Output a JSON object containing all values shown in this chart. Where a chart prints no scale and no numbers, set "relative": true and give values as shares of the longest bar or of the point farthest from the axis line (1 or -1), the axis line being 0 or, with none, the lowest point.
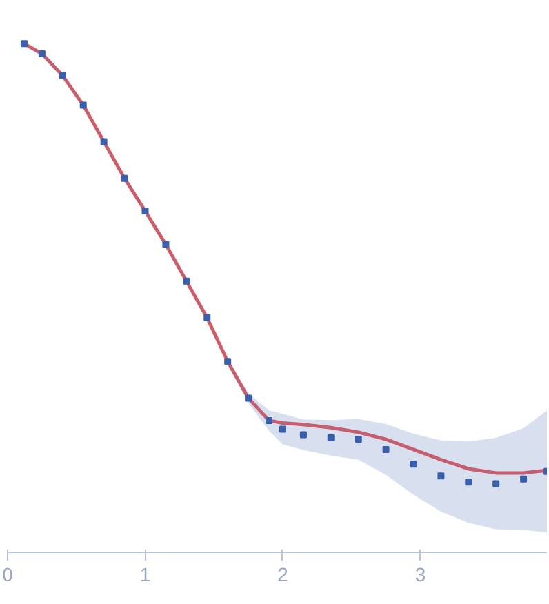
{
  "chart_data": {
    "type": "scatter",
    "relative": true,
    "x": [
      0.12,
      0.25,
      0.4,
      0.55,
      0.7,
      0.85,
      1.0,
      1.15,
      1.3,
      1.45,
      1.6,
      1.75,
      1.9,
      2.0,
      2.15,
      2.35,
      2.55,
      2.75,
      2.95,
      3.15,
      3.35,
      3.55,
      3.75,
      3.92
    ],
    "xlim": [
      0,
      3.92
    ],
    "xticks": [
      0,
      1,
      2,
      3
    ],
    "series": [
      {
        "marker": "square",
        "color": "#3a5fad",
        "values": [
          1.0,
          0.98,
          0.937,
          0.879,
          0.807,
          0.735,
          0.671,
          0.605,
          0.533,
          0.461,
          0.375,
          0.303,
          0.259,
          0.242,
          0.231,
          0.225,
          0.222,
          0.202,
          0.173,
          0.15,
          0.138,
          0.135,
          0.144,
          0.159
        ],
        "lower": [
          0.995,
          0.975,
          0.932,
          0.874,
          0.802,
          0.73,
          0.666,
          0.6,
          0.528,
          0.456,
          0.37,
          0.293,
          0.239,
          0.212,
          0.201,
          0.19,
          0.182,
          0.152,
          0.113,
          0.08,
          0.058,
          0.045,
          0.044,
          0.039
        ],
        "upper": [
          1.0,
          0.985,
          0.942,
          0.884,
          0.812,
          0.74,
          0.676,
          0.61,
          0.538,
          0.466,
          0.38,
          0.313,
          0.279,
          0.272,
          0.261,
          0.26,
          0.262,
          0.252,
          0.233,
          0.22,
          0.218,
          0.225,
          0.244,
          0.279
        ]
      },
      {
        "type": "line",
        "color": "#e8605f",
        "values": [
          1.0,
          0.98,
          0.937,
          0.879,
          0.807,
          0.735,
          0.671,
          0.605,
          0.533,
          0.461,
          0.375,
          0.303,
          0.259,
          0.254,
          0.251,
          0.245,
          0.236,
          0.222,
          0.202,
          0.182,
          0.164,
          0.156,
          0.156,
          0.161
        ]
      }
    ]
  }
}
